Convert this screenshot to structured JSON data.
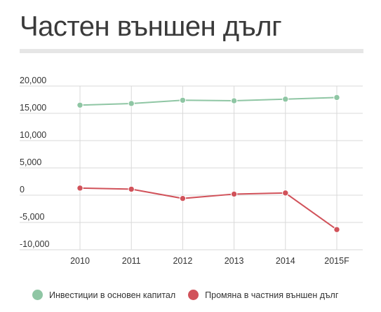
{
  "title": "Частен външен дълг",
  "chart_data": {
    "type": "line",
    "categories": [
      "2010",
      "2011",
      "2012",
      "2013",
      "2014",
      "2015F"
    ],
    "yticks": [
      "20,000",
      "15,000",
      "10,000",
      "5,000",
      "0",
      "-5,000",
      "-10,000"
    ],
    "ylim": [
      -10000,
      20000
    ],
    "grid": true,
    "legend_position": "bottom",
    "series": [
      {
        "name": "Инвестиции в основен капитал",
        "color": "#8fc6a4",
        "values": [
          16500,
          16800,
          17400,
          17300,
          17600,
          17900
        ]
      },
      {
        "name": "Промяна в частния външен дълг",
        "color": "#d1525a",
        "values": [
          1300,
          1100,
          -600,
          200,
          400,
          -6300
        ]
      }
    ]
  }
}
